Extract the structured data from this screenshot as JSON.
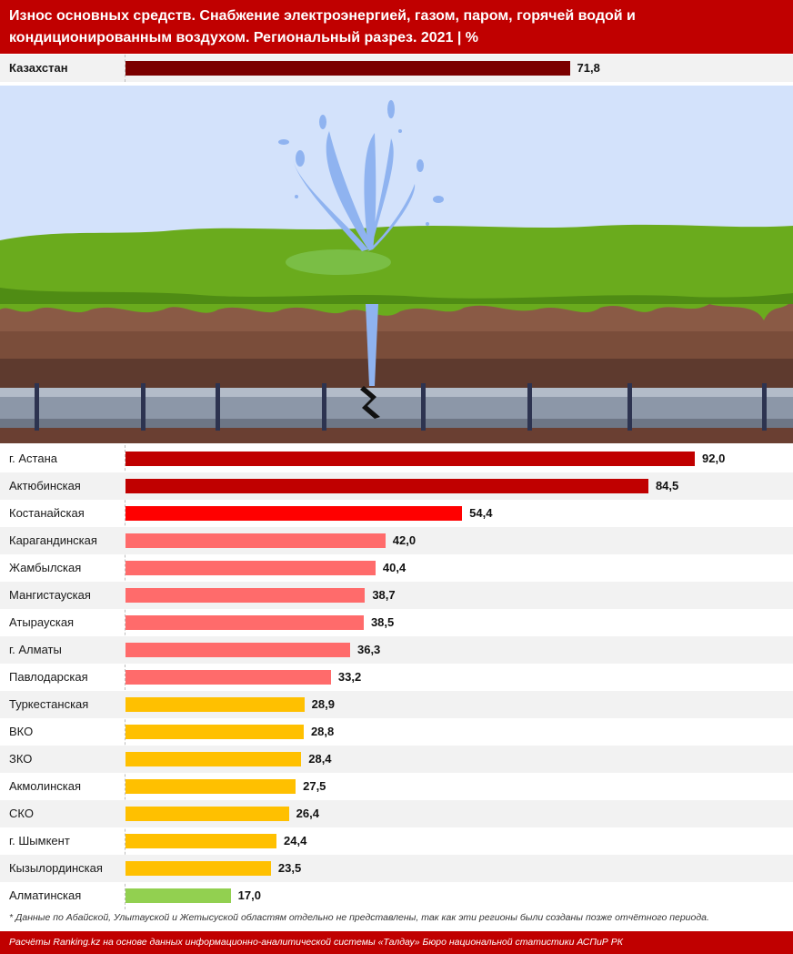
{
  "header": {
    "title": "Износ основных средств. Снабжение электроэнергией, газом, паром, горячей водой и кондиционированным воздухом. Региональный разрез. 2021 | %"
  },
  "colors": {
    "header_bg": "#c00000",
    "dark_red": "#7b0000",
    "red": "#c00000",
    "bright_red": "#ff0000",
    "pink": "#ff6b6b",
    "yellow": "#ffc000",
    "green": "#92d050"
  },
  "chart_data": {
    "type": "bar",
    "orientation": "horizontal",
    "title": "Износ основных средств. Снабжение электроэнергией, газом, паром, горячей водой и кондиционированным воздухом. Региональный разрез. 2021 | %",
    "total": {
      "category": "Казахстан",
      "value": 71.8,
      "label": "71,8",
      "color": "#7b0000"
    },
    "categories": [
      "г. Астана",
      "Актюбинская",
      "Костанайская",
      "Карагандинская",
      "Жамбылская",
      "Мангистауская",
      "Атырауская",
      "г. Алматы",
      "Павлодарская",
      "Туркестанская",
      "ВКО",
      "ЗКО",
      "Акмолинская",
      "СКО",
      "г. Шымкент",
      "Кызылординская",
      "Алматинская"
    ],
    "values": [
      92.0,
      84.5,
      54.4,
      42.0,
      40.4,
      38.7,
      38.5,
      36.3,
      33.2,
      28.9,
      28.8,
      28.4,
      27.5,
      26.4,
      24.4,
      23.5,
      17.0
    ],
    "value_labels": [
      "92,0",
      "84,5",
      "54,4",
      "42,0",
      "40,4",
      "38,7",
      "38,5",
      "36,3",
      "33,2",
      "28,9",
      "28,8",
      "28,4",
      "27,5",
      "26,4",
      "24,4",
      "23,5",
      "17,0"
    ],
    "bar_colors": [
      "#c00000",
      "#c00000",
      "#ff0000",
      "#ff6b6b",
      "#ff6b6b",
      "#ff6b6b",
      "#ff6b6b",
      "#ff6b6b",
      "#ff6b6b",
      "#ffc000",
      "#ffc000",
      "#ffc000",
      "#ffc000",
      "#ffc000",
      "#ffc000",
      "#ffc000",
      "#92d050"
    ],
    "xlim": [
      0,
      100
    ],
    "grid": false
  },
  "footnote": "* Данные по Абайской, Улытауской и Жетысуской областям отдельно не представлены, так как эти регионы были созданы позже отчётного периода.",
  "footer": "Расчёты Ranking.kz на основе данных информационно-аналитической системы «Талдау» Бюро национальной статистики АСПиР РК"
}
